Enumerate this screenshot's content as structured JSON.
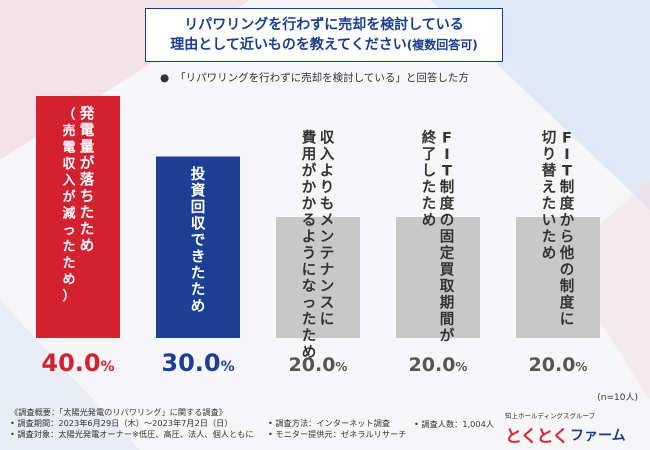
{
  "header": {
    "title_line1": "リパワリングを行わずに売却を検討している",
    "title_line2": "理由として近いものを教えてください",
    "title_line2_suffix": "(複数回答可)",
    "subtitle": "「リパワリングを行わずに売却を検討している」と回答した方"
  },
  "chart_data": {
    "type": "bar",
    "categories": [
      "発電量が落ちたため（売電収入が減ったため）",
      "投資回収できたため",
      "収入よりもメンテナンスに費用がかかるようになったため",
      "FIT制度の固定買取期間が終了したため",
      "FIT制度から他の制度に切り替えたいため"
    ],
    "bar_labels": [
      [
        "発電量が落ちたため",
        "（売電収入が減ったため）"
      ],
      [
        "投資回収できたため"
      ],
      [
        "収入よりもメンテナンスに",
        "費用がかかるようになったため"
      ],
      [
        "FIT制度の固定買取期間が",
        "終了したため"
      ],
      [
        "FIT制度から他の制度に",
        "切り替えたいため"
      ]
    ],
    "values": [
      40.0,
      30.0,
      20.0,
      20.0,
      20.0
    ],
    "value_labels": [
      {
        "num": "40.0",
        "unit": "%"
      },
      {
        "num": "30.0",
        "unit": "%"
      },
      {
        "num": "20.0",
        "unit": "%"
      },
      {
        "num": "20.0",
        "unit": "%"
      },
      {
        "num": "20.0",
        "unit": "%"
      }
    ],
    "bar_colors": [
      "#d42130",
      "#1c3f94",
      "#c8c8c8",
      "#c8c8c8",
      "#c8c8c8"
    ],
    "value_colors": [
      "#d42130",
      "#1c3f94",
      "#555555",
      "#555555",
      "#555555"
    ],
    "text_colors": [
      "#ffffff",
      "#ffffff",
      "#333333",
      "#333333",
      "#333333"
    ],
    "ylim": [
      0,
      40
    ]
  },
  "note_n": "(n=10人)",
  "footer": {
    "overview": "《調査概要：「太陽光発電のリパワリング」に関する調査》",
    "period": "• 調査期間：2023年6月29日（木）～2023年7月2日（日）",
    "target": "• 調査対象：太陽光発電オーナー※低圧、高圧、法人、個人ともに",
    "method": "• 調査方法：インターネット調査",
    "provider": "• モニター提供元：ゼネラルリサーチ",
    "count": "• 調査人数：1,004人"
  },
  "logo": {
    "sub": "知上ホールディングスグループ",
    "mark": "とくとく",
    "text": "ファーム"
  },
  "colors": {
    "accent_blue": "#1a3d8f",
    "accent_red": "#d42130"
  }
}
